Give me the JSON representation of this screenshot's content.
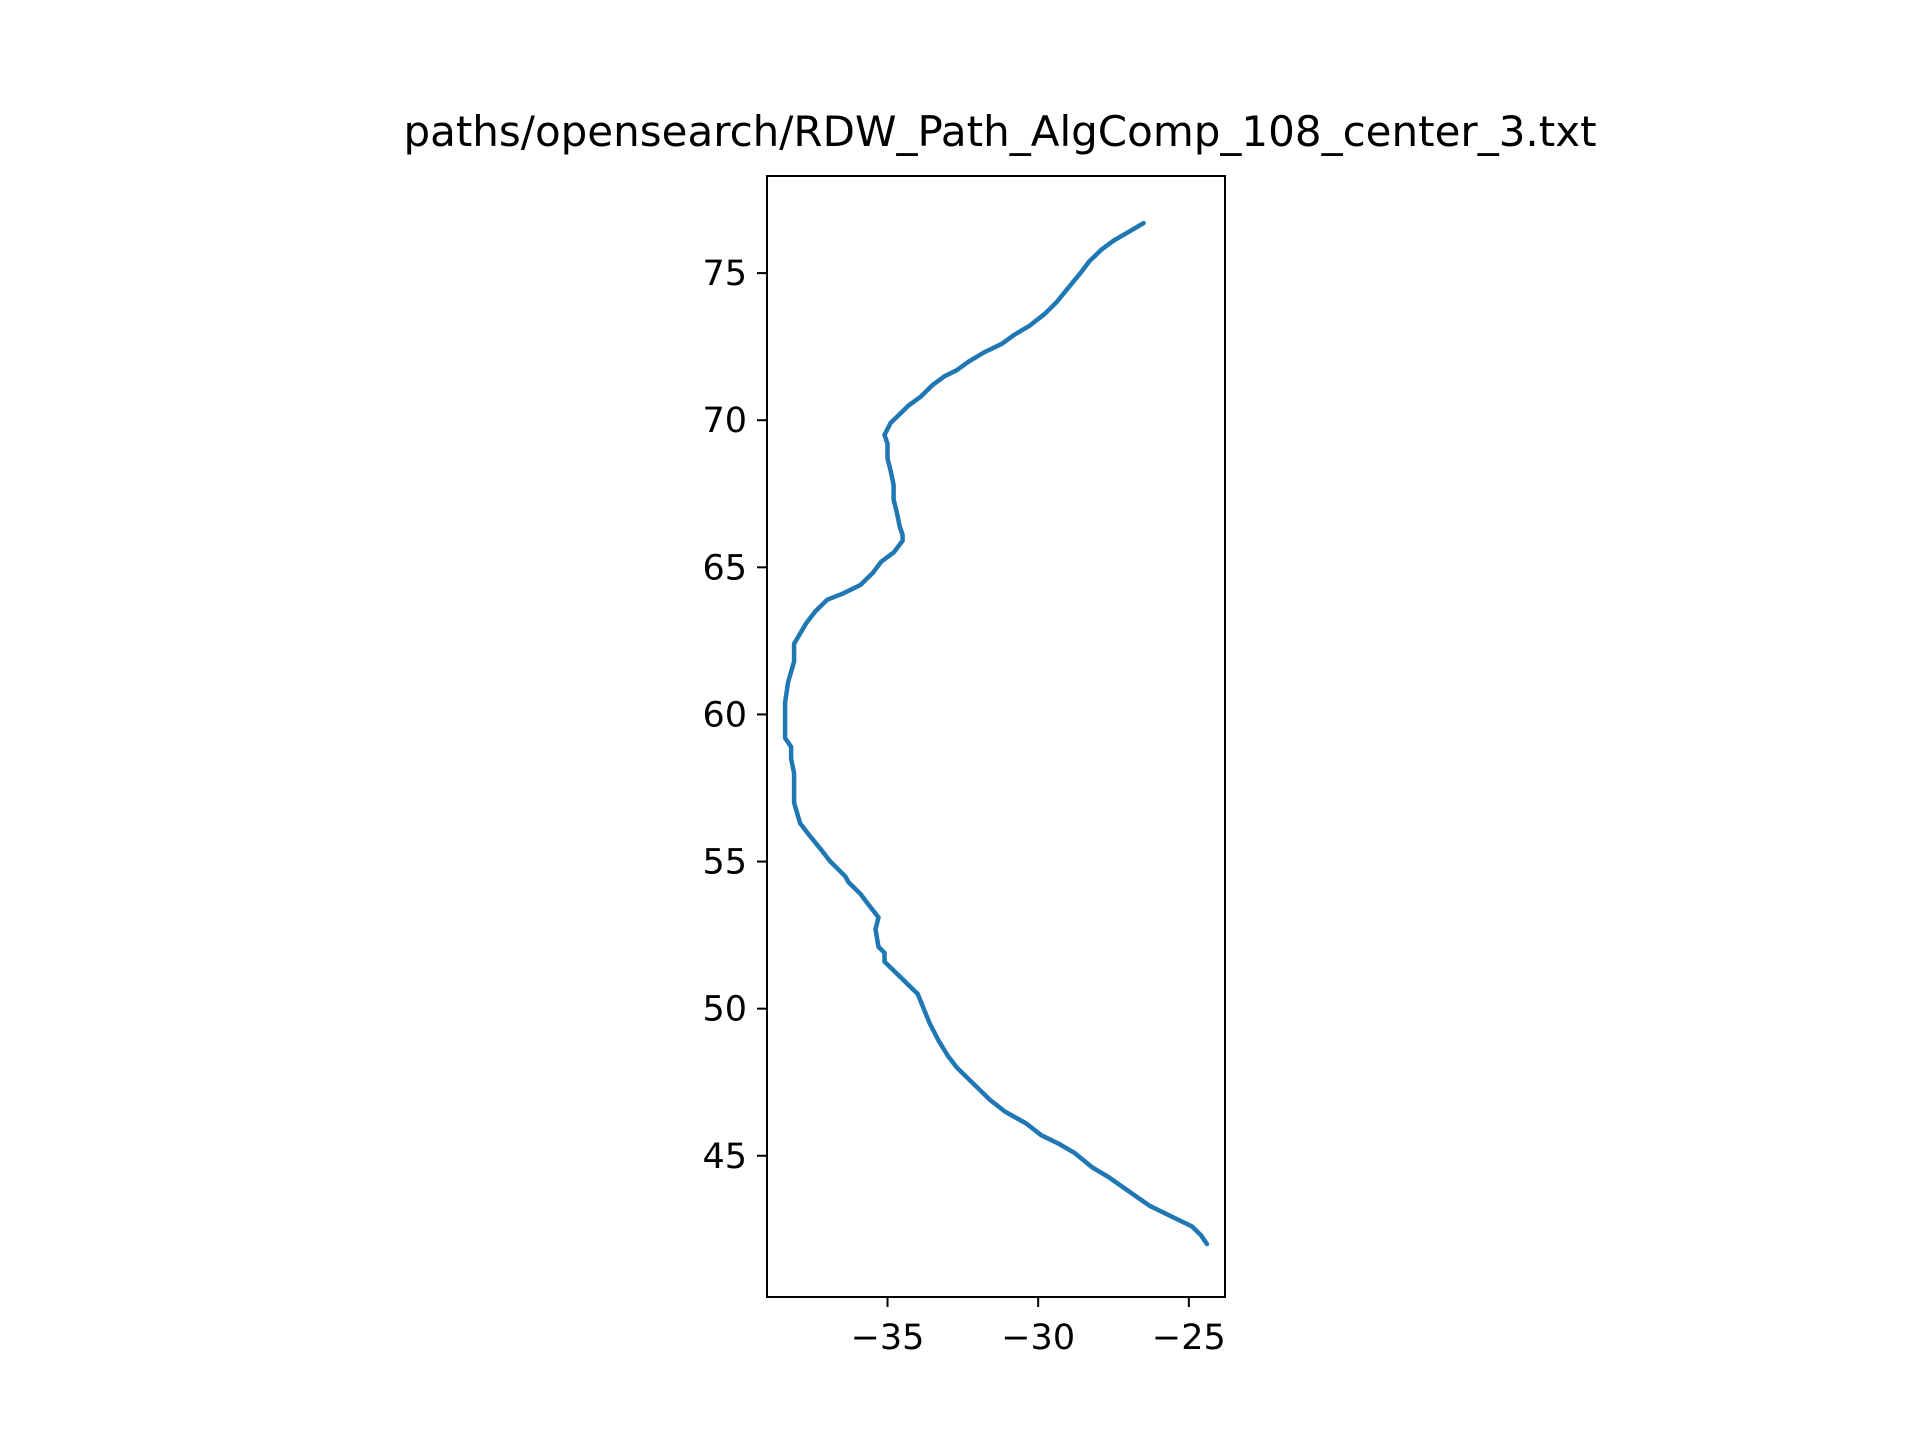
{
  "chart_data": {
    "type": "line",
    "title": "paths/opensearch/RDW_Path_AlgComp_108_center_3.txt",
    "xlabel": "",
    "ylabel": "",
    "xlim": [
      -39.0,
      -23.8
    ],
    "ylim": [
      40.2,
      78.3
    ],
    "x_ticks": [
      -35,
      -30,
      -25
    ],
    "y_ticks": [
      45,
      50,
      55,
      60,
      65,
      70,
      75
    ],
    "x_tick_labels": [
      "−35",
      "−30",
      "−25"
    ],
    "y_tick_labels": [
      "45",
      "50",
      "55",
      "60",
      "65",
      "70",
      "75"
    ],
    "grid": false,
    "legend": "none",
    "series": [
      {
        "color": "#1f77b4",
        "x": [
          -24.4,
          -24.6,
          -24.9,
          -25.5,
          -26.3,
          -27.0,
          -27.7,
          -28.2,
          -28.8,
          -29.3,
          -29.9,
          -30.4,
          -31.1,
          -31.6,
          -32.1,
          -32.7,
          -33.0,
          -33.3,
          -33.6,
          -33.8,
          -34.0,
          -34.3,
          -34.7,
          -35.1,
          -35.1,
          -35.3,
          -35.4,
          -35.3,
          -35.6,
          -35.9,
          -36.1,
          -36.3,
          -36.4,
          -36.9,
          -37.2,
          -37.6,
          -37.9,
          -38.1,
          -38.1,
          -38.2,
          -38.2,
          -38.4,
          -38.4,
          -38.4,
          -38.3,
          -38.1,
          -38.1,
          -37.7,
          -37.4,
          -37.0,
          -36.5,
          -35.9,
          -35.5,
          -35.2,
          -34.8,
          -34.5,
          -34.5,
          -34.6,
          -34.7,
          -34.8,
          -34.8,
          -34.9,
          -35.0,
          -35.0,
          -35.1,
          -34.9,
          -34.6,
          -34.3,
          -33.9,
          -33.5,
          -33.1,
          -32.7,
          -32.3,
          -31.8,
          -31.2,
          -30.8,
          -30.3,
          -29.8,
          -29.4,
          -29.0,
          -28.6,
          -28.3,
          -27.9,
          -27.5,
          -27.0,
          -26.5
        ],
        "y": [
          42.0,
          42.3,
          42.6,
          42.9,
          43.3,
          43.8,
          44.3,
          44.6,
          45.1,
          45.4,
          45.7,
          46.1,
          46.5,
          46.9,
          47.4,
          48.0,
          48.4,
          48.9,
          49.5,
          50.0,
          50.5,
          50.8,
          51.2,
          51.6,
          51.9,
          52.1,
          52.7,
          53.1,
          53.5,
          53.9,
          54.1,
          54.3,
          54.5,
          55.0,
          55.4,
          55.9,
          56.3,
          57.0,
          58.0,
          58.5,
          58.9,
          59.2,
          59.6,
          60.4,
          61.1,
          61.8,
          62.4,
          63.1,
          63.5,
          63.9,
          64.1,
          64.4,
          64.8,
          65.2,
          65.5,
          65.9,
          66.1,
          66.4,
          66.9,
          67.3,
          67.8,
          68.3,
          68.7,
          69.2,
          69.5,
          69.9,
          70.2,
          70.5,
          70.8,
          71.2,
          71.5,
          71.7,
          72.0,
          72.3,
          72.6,
          72.9,
          73.2,
          73.6,
          74.0,
          74.5,
          75.0,
          75.4,
          75.8,
          76.1,
          76.4,
          76.7
        ]
      }
    ]
  }
}
